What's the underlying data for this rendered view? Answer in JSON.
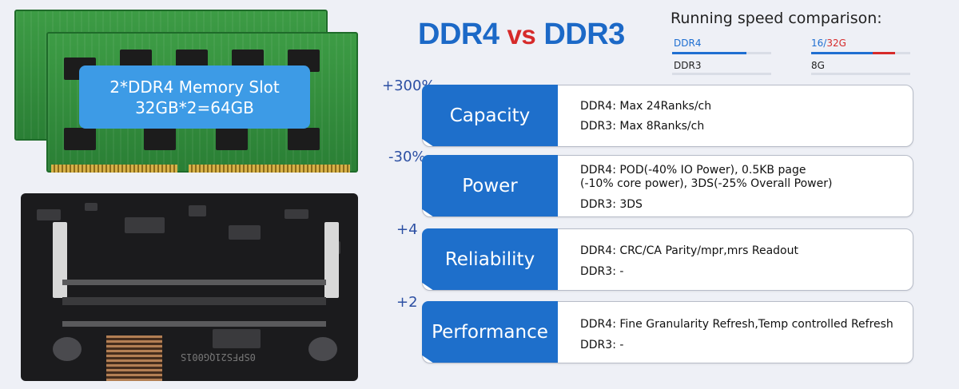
{
  "memory": {
    "badge_line1": "2*DDR4 Memory Slot",
    "badge_line2": "32GB*2=64GB"
  },
  "board": {
    "chip_marking": "0SPFS21QG001S"
  },
  "header": {
    "title_ddr4": "DDR4",
    "title_vs": "vs",
    "title_ddr3": "DDR3"
  },
  "speed": {
    "title": "Running speed comparison:",
    "ddr4_label": "DDR4",
    "ddr3_label": "DDR3",
    "cap_16": "16",
    "cap_sep": "/",
    "cap_32": "32G",
    "cap_8": "8G",
    "ddr4_speed_fraction": 0.75,
    "ddr3_speed_fraction": 0.0,
    "capacity_16_fraction": 0.62,
    "capacity_32_fraction": 0.85,
    "colors": {
      "ddr4": "#1f6fd1",
      "ddr3": "#d9dde6",
      "cap32": "#d62a2a",
      "accent": "#1e6fcb"
    }
  },
  "rows": [
    {
      "pct": "+300%",
      "label": "Capacity",
      "lines": [
        "DDR4: Max 24Ranks/ch",
        "DDR3: Max 8Ranks/ch"
      ]
    },
    {
      "pct": "-30%",
      "label": "Power",
      "lines": [
        "DDR4: POD(-40% IO Power), 0.5KB page",
        "(-10% core power), 3DS(-25% Overall Power)",
        "DDR3: 3DS"
      ]
    },
    {
      "pct": "+4",
      "label": "Reliability",
      "lines": [
        "DDR4: CRC/CA Parity/mpr,mrs Readout",
        "DDR3: -"
      ]
    },
    {
      "pct": "+2",
      "label": "Performance",
      "lines": [
        "DDR4: Fine Granularity Refresh,Temp controlled Refresh",
        "DDR3: -"
      ]
    }
  ]
}
